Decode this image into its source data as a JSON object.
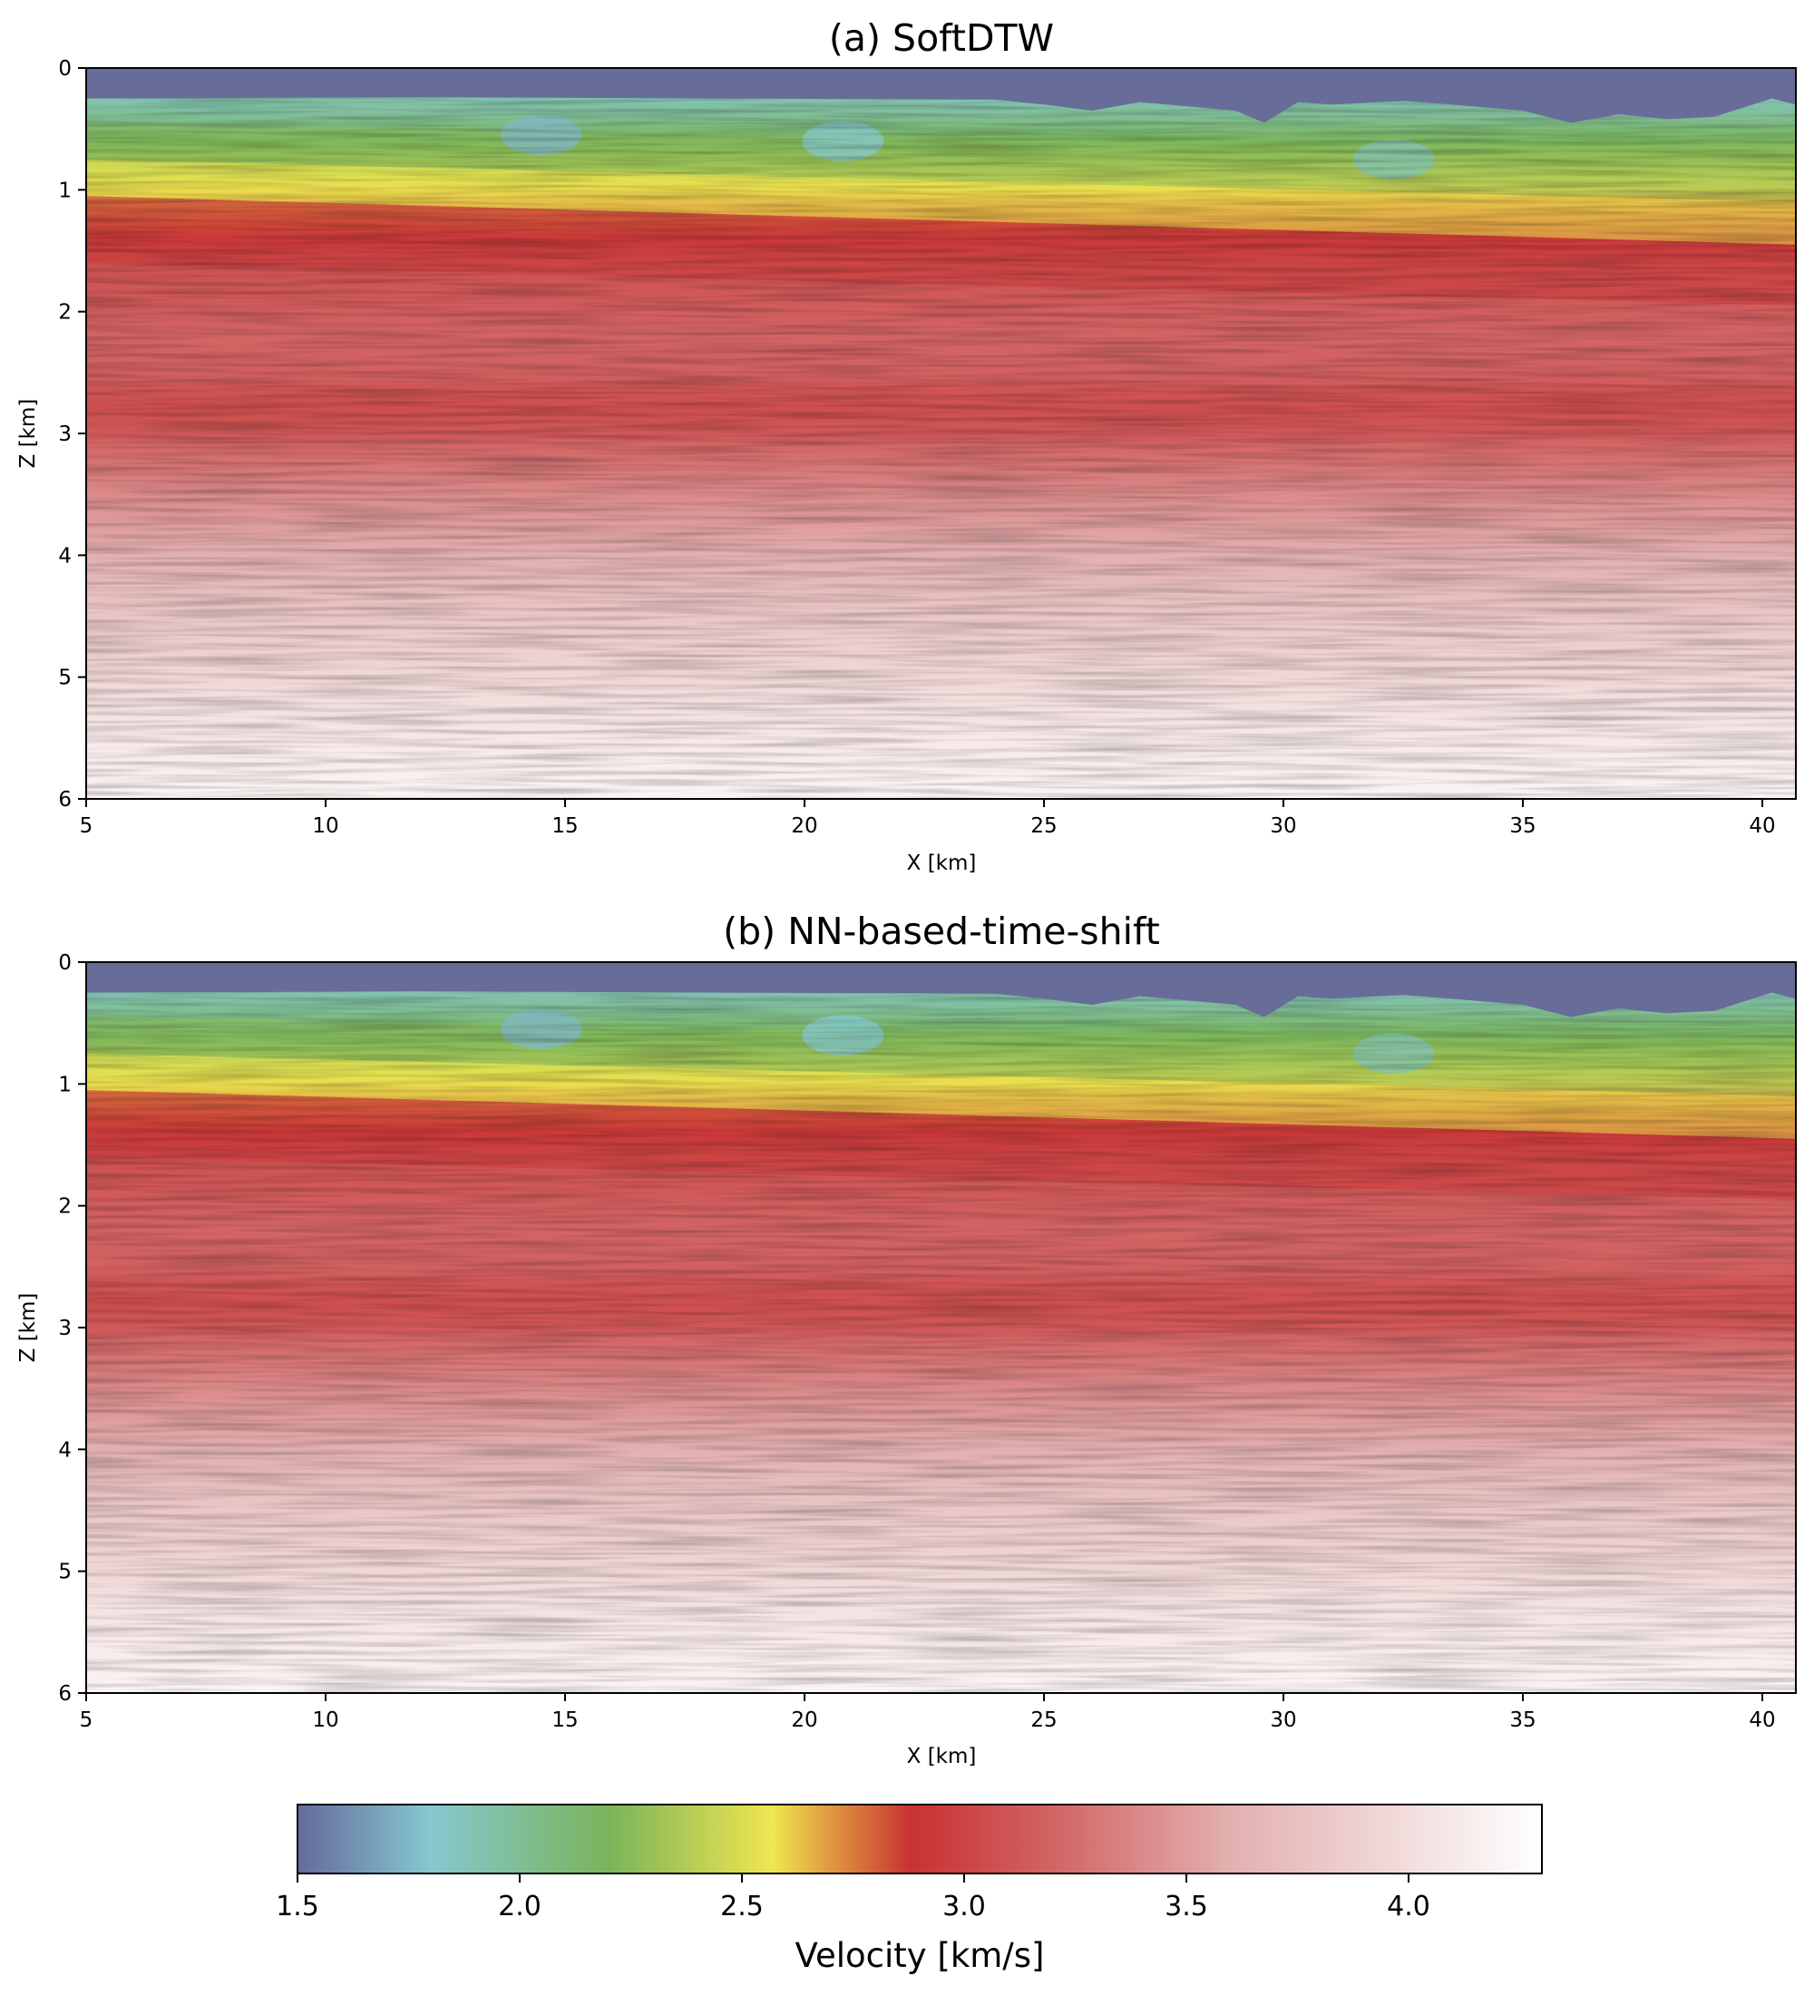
{
  "chart_data": [
    {
      "type": "heatmap",
      "title": "(a) SoftDTW",
      "xlabel": "X [km]",
      "ylabel": "Z [km]",
      "xlim": [
        5,
        40.7
      ],
      "ylim": [
        0,
        6
      ],
      "y_inverted": true,
      "xticks": [
        5,
        10,
        15,
        20,
        25,
        30,
        35,
        40
      ],
      "yticks": [
        0,
        1,
        2,
        3,
        4,
        5,
        6
      ],
      "grid": false,
      "water_bottom_depth": [
        [
          5,
          0.25
        ],
        [
          12,
          0.24
        ],
        [
          24,
          0.26
        ],
        [
          25,
          0.3
        ],
        [
          26,
          0.35
        ],
        [
          27,
          0.28
        ],
        [
          29,
          0.35
        ],
        [
          29.6,
          0.45
        ],
        [
          30.3,
          0.28
        ],
        [
          31,
          0.3
        ],
        [
          32.5,
          0.27
        ],
        [
          33.5,
          0.3
        ],
        [
          35,
          0.35
        ],
        [
          36,
          0.45
        ],
        [
          37,
          0.38
        ],
        [
          38,
          0.42
        ],
        [
          39,
          0.4
        ],
        [
          40.2,
          0.25
        ],
        [
          40.7,
          0.3
        ]
      ],
      "velocity_profile_at_left": [
        [
          0.25,
          1.9
        ],
        [
          0.5,
          2.2
        ],
        [
          0.8,
          2.5
        ],
        [
          1.1,
          2.95
        ],
        [
          1.6,
          3.2
        ],
        [
          2.5,
          3.2
        ],
        [
          2.8,
          3.05
        ],
        [
          3.5,
          3.4
        ],
        [
          4.5,
          3.8
        ],
        [
          5.5,
          4.1
        ],
        [
          6,
          4.2
        ]
      ],
      "velocity_profile_at_right": [
        [
          0.4,
          1.9
        ],
        [
          0.8,
          2.2
        ],
        [
          1.3,
          2.55
        ],
        [
          1.65,
          2.95
        ],
        [
          2.2,
          3.2
        ],
        [
          2.8,
          3.1
        ],
        [
          3.5,
          3.4
        ],
        [
          4.5,
          3.8
        ],
        [
          5.5,
          4.1
        ],
        [
          6,
          4.2
        ]
      ],
      "low_velocity_zones": [
        {
          "x": 14.5,
          "z": 0.55,
          "velocity": 1.75
        },
        {
          "x": 20.8,
          "z": 0.6,
          "velocity": 1.8
        },
        {
          "x": 32.3,
          "z": 0.75,
          "velocity": 1.9
        }
      ]
    },
    {
      "type": "heatmap",
      "title": "(b) NN-based-time-shift",
      "xlabel": "X [km]",
      "ylabel": "Z [km]",
      "xlim": [
        5,
        40.7
      ],
      "ylim": [
        0,
        6
      ],
      "y_inverted": true,
      "xticks": [
        5,
        10,
        15,
        20,
        25,
        30,
        35,
        40
      ],
      "yticks": [
        0,
        1,
        2,
        3,
        4,
        5,
        6
      ],
      "grid": false,
      "water_bottom_depth": [
        [
          5,
          0.25
        ],
        [
          12,
          0.24
        ],
        [
          24,
          0.26
        ],
        [
          25,
          0.3
        ],
        [
          26,
          0.35
        ],
        [
          27,
          0.28
        ],
        [
          29,
          0.35
        ],
        [
          29.6,
          0.45
        ],
        [
          30.3,
          0.28
        ],
        [
          31,
          0.3
        ],
        [
          32.5,
          0.27
        ],
        [
          33.5,
          0.3
        ],
        [
          35,
          0.35
        ],
        [
          36,
          0.45
        ],
        [
          37,
          0.38
        ],
        [
          38,
          0.42
        ],
        [
          39,
          0.4
        ],
        [
          40.2,
          0.25
        ],
        [
          40.7,
          0.3
        ]
      ],
      "velocity_profile_at_left": [
        [
          0.25,
          1.9
        ],
        [
          0.5,
          2.2
        ],
        [
          0.8,
          2.5
        ],
        [
          1.1,
          2.95
        ],
        [
          1.6,
          3.2
        ],
        [
          2.5,
          3.2
        ],
        [
          2.8,
          3.05
        ],
        [
          3.5,
          3.4
        ],
        [
          4.5,
          3.8
        ],
        [
          5.5,
          4.1
        ],
        [
          6,
          4.2
        ]
      ],
      "velocity_profile_at_right": [
        [
          0.4,
          1.9
        ],
        [
          0.8,
          2.2
        ],
        [
          1.3,
          2.55
        ],
        [
          1.65,
          2.95
        ],
        [
          2.2,
          3.2
        ],
        [
          2.8,
          3.1
        ],
        [
          3.5,
          3.4
        ],
        [
          4.5,
          3.8
        ],
        [
          5.5,
          4.1
        ],
        [
          6,
          4.2
        ]
      ],
      "low_velocity_zones": [
        {
          "x": 14.5,
          "z": 0.55,
          "velocity": 1.75
        },
        {
          "x": 20.8,
          "z": 0.6,
          "velocity": 1.8
        },
        {
          "x": 32.3,
          "z": 0.75,
          "velocity": 1.9
        }
      ]
    }
  ],
  "colorbar": {
    "label": "Velocity [km/s]",
    "vmin": 1.5,
    "vmax": 4.3,
    "ticks": [
      1.5,
      2.0,
      2.5,
      3.0,
      3.5,
      4.0
    ],
    "tick_labels": [
      "1.5",
      "2.0",
      "2.5",
      "3.0",
      "3.5",
      "4.0"
    ],
    "colormap_stops": [
      {
        "value": 1.5,
        "color": "#646a9a"
      },
      {
        "value": 1.8,
        "color": "#86c8d0"
      },
      {
        "value": 2.2,
        "color": "#7ab45a"
      },
      {
        "value": 2.57,
        "color": "#f0e650"
      },
      {
        "value": 2.7,
        "color": "#e09840"
      },
      {
        "value": 2.88,
        "color": "#c83232"
      },
      {
        "value": 3.2,
        "color": "#d36464"
      },
      {
        "value": 3.6,
        "color": "#e2b0b0"
      },
      {
        "value": 4.3,
        "color": "#ffffff"
      }
    ],
    "water_color": "#686c98"
  }
}
